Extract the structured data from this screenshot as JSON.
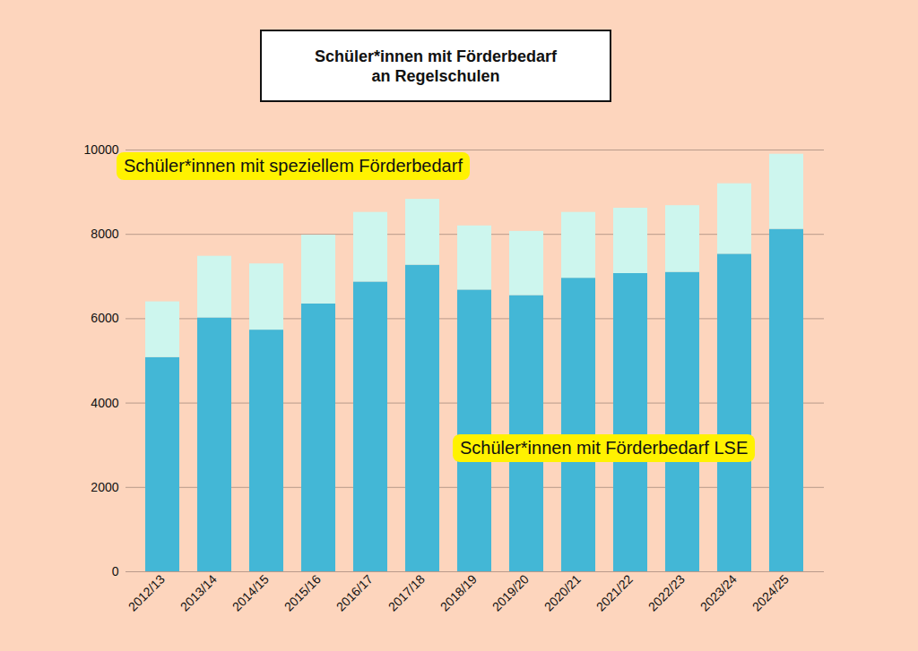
{
  "chart_data": {
    "type": "bar",
    "title": "Schüler*innen mit Förderbedarf\nan Regelschulen",
    "categories": [
      "2012/13",
      "2013/14",
      "2014/15",
      "2015/16",
      "2016/17",
      "2017/18",
      "2018/19",
      "2019/20",
      "2020/21",
      "2021/22",
      "2022/23",
      "2023/24",
      "2024/25"
    ],
    "series": [
      {
        "name": "Schüler*innen mit Förderbedarf LSE",
        "color": "#43b7d6",
        "values": [
          5080,
          6020,
          5730,
          6350,
          6870,
          7270,
          6680,
          6550,
          6960,
          7070,
          7100,
          7530,
          8120
        ]
      },
      {
        "name": "Schüler*innen mit speziellem Förderbedarf",
        "color": "#cdf6ee",
        "values": [
          1320,
          1460,
          1570,
          1630,
          1650,
          1560,
          1520,
          1520,
          1560,
          1550,
          1580,
          1670,
          1780
        ]
      }
    ],
    "stacked": true,
    "ylim": [
      0,
      10000
    ],
    "yticks": [
      0,
      2000,
      4000,
      6000,
      8000,
      10000
    ],
    "grid": true
  }
}
